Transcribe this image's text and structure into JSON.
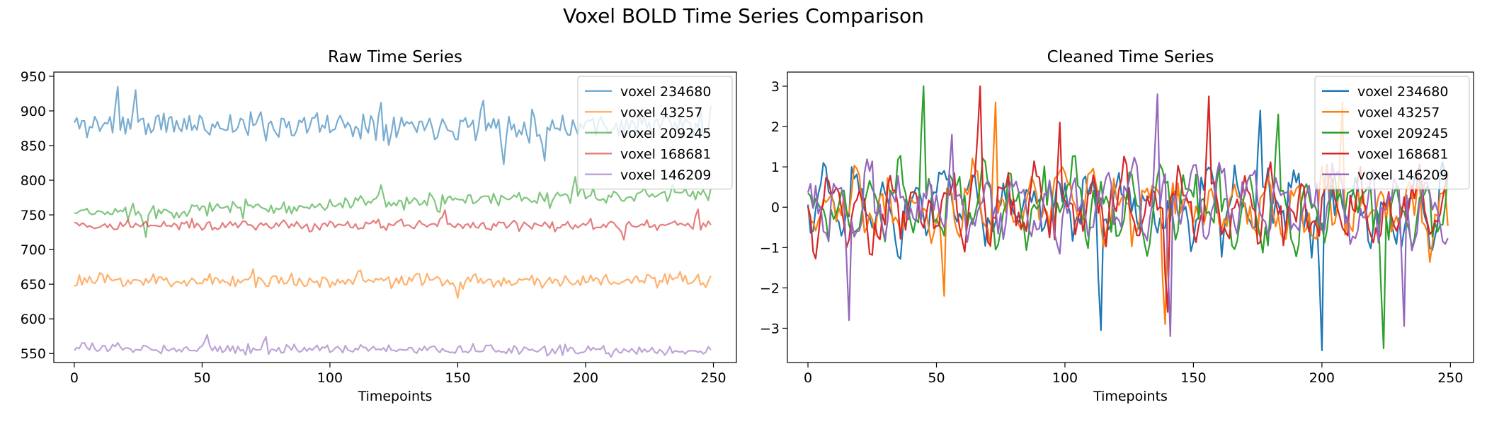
{
  "figure": {
    "title": "Voxel BOLD Time Series Comparison"
  },
  "chart_data": [
    {
      "type": "line",
      "title": "Raw Time Series",
      "xlabel": "Timepoints",
      "ylabel": "",
      "xlim": [
        -8,
        259
      ],
      "ylim": [
        537,
        956
      ],
      "xticks": [
        0,
        50,
        100,
        150,
        200,
        250
      ],
      "yticks": [
        550,
        600,
        650,
        700,
        750,
        800,
        850,
        900,
        950
      ],
      "grid": false,
      "legend_position": "top-right",
      "line_alpha": 0.6,
      "n_points": 250,
      "series": [
        {
          "name": "voxel 234680",
          "color": "#1f77b4",
          "mean": 880,
          "amplitude": 18,
          "trend": 0,
          "seed": 11,
          "peaks": [
            [
              17,
              935
            ],
            [
              24,
              930
            ],
            [
              120,
              912
            ],
            [
              160,
              915
            ],
            [
              184,
              828
            ],
            [
              168,
              823
            ]
          ]
        },
        {
          "name": "voxel 43257",
          "color": "#ff7f0e",
          "mean": 655,
          "amplitude": 9,
          "trend": 0,
          "seed": 23,
          "peaks": [
            [
              70,
              672
            ],
            [
              112,
              670
            ],
            [
              150,
              630
            ]
          ]
        },
        {
          "name": "voxel 209245",
          "color": "#2ca02c",
          "mean": 752,
          "amplitude": 10,
          "trend": 30,
          "seed": 37,
          "peaks": [
            [
              28,
              718
            ],
            [
              120,
              793
            ],
            [
              196,
              805
            ]
          ]
        },
        {
          "name": "voxel 168681",
          "color": "#d62728",
          "mean": 735,
          "amplitude": 7,
          "trend": 0,
          "seed": 41,
          "peaks": [
            [
              145,
              757
            ],
            [
              215,
              714
            ],
            [
              244,
              758
            ]
          ]
        },
        {
          "name": "voxel 146209",
          "color": "#9467bd",
          "mean": 558,
          "amplitude": 6,
          "trend": -4,
          "seed": 53,
          "peaks": [
            [
              52,
              577
            ],
            [
              75,
              574
            ],
            [
              210,
              545
            ]
          ]
        }
      ]
    },
    {
      "type": "line",
      "title": "Cleaned Time Series",
      "xlabel": "Timepoints",
      "ylabel": "",
      "xlim": [
        -8,
        259
      ],
      "ylim": [
        -3.85,
        3.35
      ],
      "xticks": [
        0,
        50,
        100,
        150,
        200,
        250
      ],
      "yticks": [
        -3,
        -2,
        -1,
        0,
        1,
        2,
        3
      ],
      "grid": false,
      "legend_position": "top-right",
      "line_alpha": 1.0,
      "n_points": 250,
      "series": [
        {
          "name": "voxel 234680",
          "color": "#1f77b4",
          "mean": 0,
          "amplitude": 1.0,
          "trend": 0,
          "seed": 61,
          "peaks": [
            [
              114,
              -3.05
            ],
            [
              176,
              2.4
            ],
            [
              200,
              -3.55
            ]
          ]
        },
        {
          "name": "voxel 43257",
          "color": "#ff7f0e",
          "mean": 0,
          "amplitude": 1.0,
          "trend": 0,
          "seed": 67,
          "peaks": [
            [
              53,
              -2.2
            ],
            [
              73,
              2.6
            ],
            [
              139,
              -2.9
            ],
            [
              208,
              2.6
            ]
          ]
        },
        {
          "name": "voxel 209245",
          "color": "#2ca02c",
          "mean": 0,
          "amplitude": 1.0,
          "trend": 0,
          "seed": 71,
          "peaks": [
            [
              45,
              3.0
            ],
            [
              183,
              2.3
            ],
            [
              224,
              -3.5
            ]
          ]
        },
        {
          "name": "voxel 168681",
          "color": "#d62728",
          "mean": 0,
          "amplitude": 1.0,
          "trend": 0,
          "seed": 79,
          "peaks": [
            [
              67,
              3.0
            ],
            [
              98,
              2.1
            ],
            [
              140,
              -2.6
            ],
            [
              156,
              2.75
            ]
          ]
        },
        {
          "name": "voxel 146209",
          "color": "#9467bd",
          "mean": 0,
          "amplitude": 1.0,
          "trend": 0,
          "seed": 83,
          "peaks": [
            [
              16,
              -2.8
            ],
            [
              56,
              1.8
            ],
            [
              136,
              2.8
            ],
            [
              141,
              -3.2
            ],
            [
              232,
              -2.95
            ]
          ]
        }
      ]
    }
  ]
}
